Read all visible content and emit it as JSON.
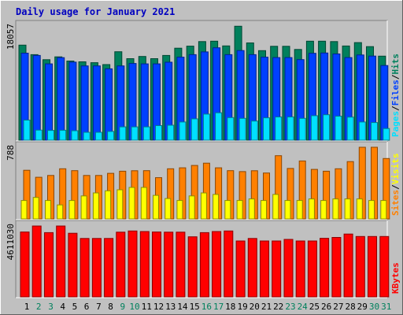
{
  "title": "Daily usage for January 2021",
  "colors": {
    "background": "#c0c0c0",
    "title": "#0000c0",
    "hits": "#00805c",
    "files": "#0040ff",
    "pages": "#00e0ff",
    "visits": "#ffff00",
    "sites": "#ff8000",
    "kbytes": "#ff0000",
    "label_black": "#000000",
    "label_green": "#00805c"
  },
  "legend": {
    "panel1": [
      {
        "text": "Pages",
        "color": "#00e0ff"
      },
      {
        "text": "Files",
        "color": "#0040ff"
      },
      {
        "text": "Hits",
        "color": "#00805c"
      }
    ],
    "panel2": [
      {
        "text": "Sites",
        "color": "#ff8000"
      },
      {
        "text": "Visits",
        "color": "#ffff00"
      }
    ],
    "panel3": [
      {
        "text": "KBytes",
        "color": "#ff0000"
      }
    ],
    "separator": "/"
  },
  "chart_data": {
    "type": "bar",
    "title": "Daily usage for January 2021",
    "categories": [
      "1",
      "2",
      "3",
      "4",
      "5",
      "6",
      "7",
      "8",
      "9",
      "10",
      "11",
      "12",
      "13",
      "14",
      "15",
      "16",
      "17",
      "18",
      "19",
      "20",
      "21",
      "22",
      "23",
      "24",
      "25",
      "26",
      "27",
      "28",
      "29",
      "30",
      "31"
    ],
    "weekend_days": [
      "2",
      "3",
      "9",
      "10",
      "16",
      "17",
      "23",
      "24",
      "30",
      "31"
    ],
    "panels": [
      {
        "name": "hits-files-pages",
        "ymax_label": "18057",
        "ymax": 18057,
        "series": [
          {
            "name": "Hits",
            "values": [
              15030,
              13530,
              12730,
              13180,
              12510,
              12390,
              12260,
              11960,
              13980,
              12890,
              13240,
              12890,
              13400,
              14540,
              14870,
              15590,
              15650,
              14910,
              18020,
              15380,
              14160,
              14840,
              14840,
              14340,
              15650,
              15650,
              15590,
              14890,
              15430,
              14790,
              13290
            ]
          },
          {
            "name": "Files",
            "values": [
              13760,
              13400,
              12070,
              13050,
              12340,
              11740,
              11740,
              11280,
              11740,
              12130,
              12070,
              12070,
              12330,
              13130,
              13530,
              13960,
              14610,
              13530,
              14170,
              13530,
              13130,
              13060,
              13060,
              12740,
              13740,
              13790,
              13630,
              13060,
              13470,
              13300,
              11810
            ]
          },
          {
            "name": "Pages",
            "values": [
              3170,
              1590,
              1550,
              1570,
              1500,
              1240,
              1240,
              1380,
              2110,
              2110,
              2110,
              2310,
              2370,
              2880,
              3380,
              4120,
              4330,
              3580,
              3450,
              3030,
              3540,
              3670,
              3670,
              3450,
              3870,
              4020,
              3800,
              3650,
              2880,
              2790,
              1840
            ]
          }
        ]
      },
      {
        "name": "sites-visits",
        "ymax_label": "788",
        "ymax": 788,
        "series": [
          {
            "name": "Sites",
            "values": [
              535,
              458,
              478,
              552,
              531,
              478,
              478,
              501,
              525,
              530,
              531,
              454,
              552,
              562,
              588,
              613,
              562,
              531,
              520,
              530,
              505,
              695,
              555,
              637,
              545,
              525,
              552,
              630,
              788,
              788,
              664
            ]
          },
          {
            "name": "Visits",
            "values": [
              203,
              236,
              203,
              154,
              203,
              253,
              286,
              309,
              320,
              346,
              346,
              259,
              224,
              203,
              253,
              286,
              269,
              203,
              203,
              220,
              203,
              269,
              203,
              203,
              220,
              203,
              220,
              220,
              220,
              203,
              203
            ]
          }
        ]
      },
      {
        "name": "kbytes",
        "ymax_label": "4611030",
        "ymax": 4611030,
        "series": [
          {
            "name": "KBytes",
            "values": [
              4220000,
              4610000,
              4180000,
              4610000,
              4140000,
              3800000,
              3800000,
              3800000,
              4210000,
              4290000,
              4250000,
              4220000,
              4210000,
              4210000,
              3910000,
              4180000,
              4250000,
              4290000,
              3640000,
              3800000,
              3640000,
              3640000,
              3740000,
              3640000,
              3640000,
              3810000,
              3870000,
              4090000,
              3930000,
              3930000,
              3930000
            ]
          }
        ]
      }
    ]
  }
}
